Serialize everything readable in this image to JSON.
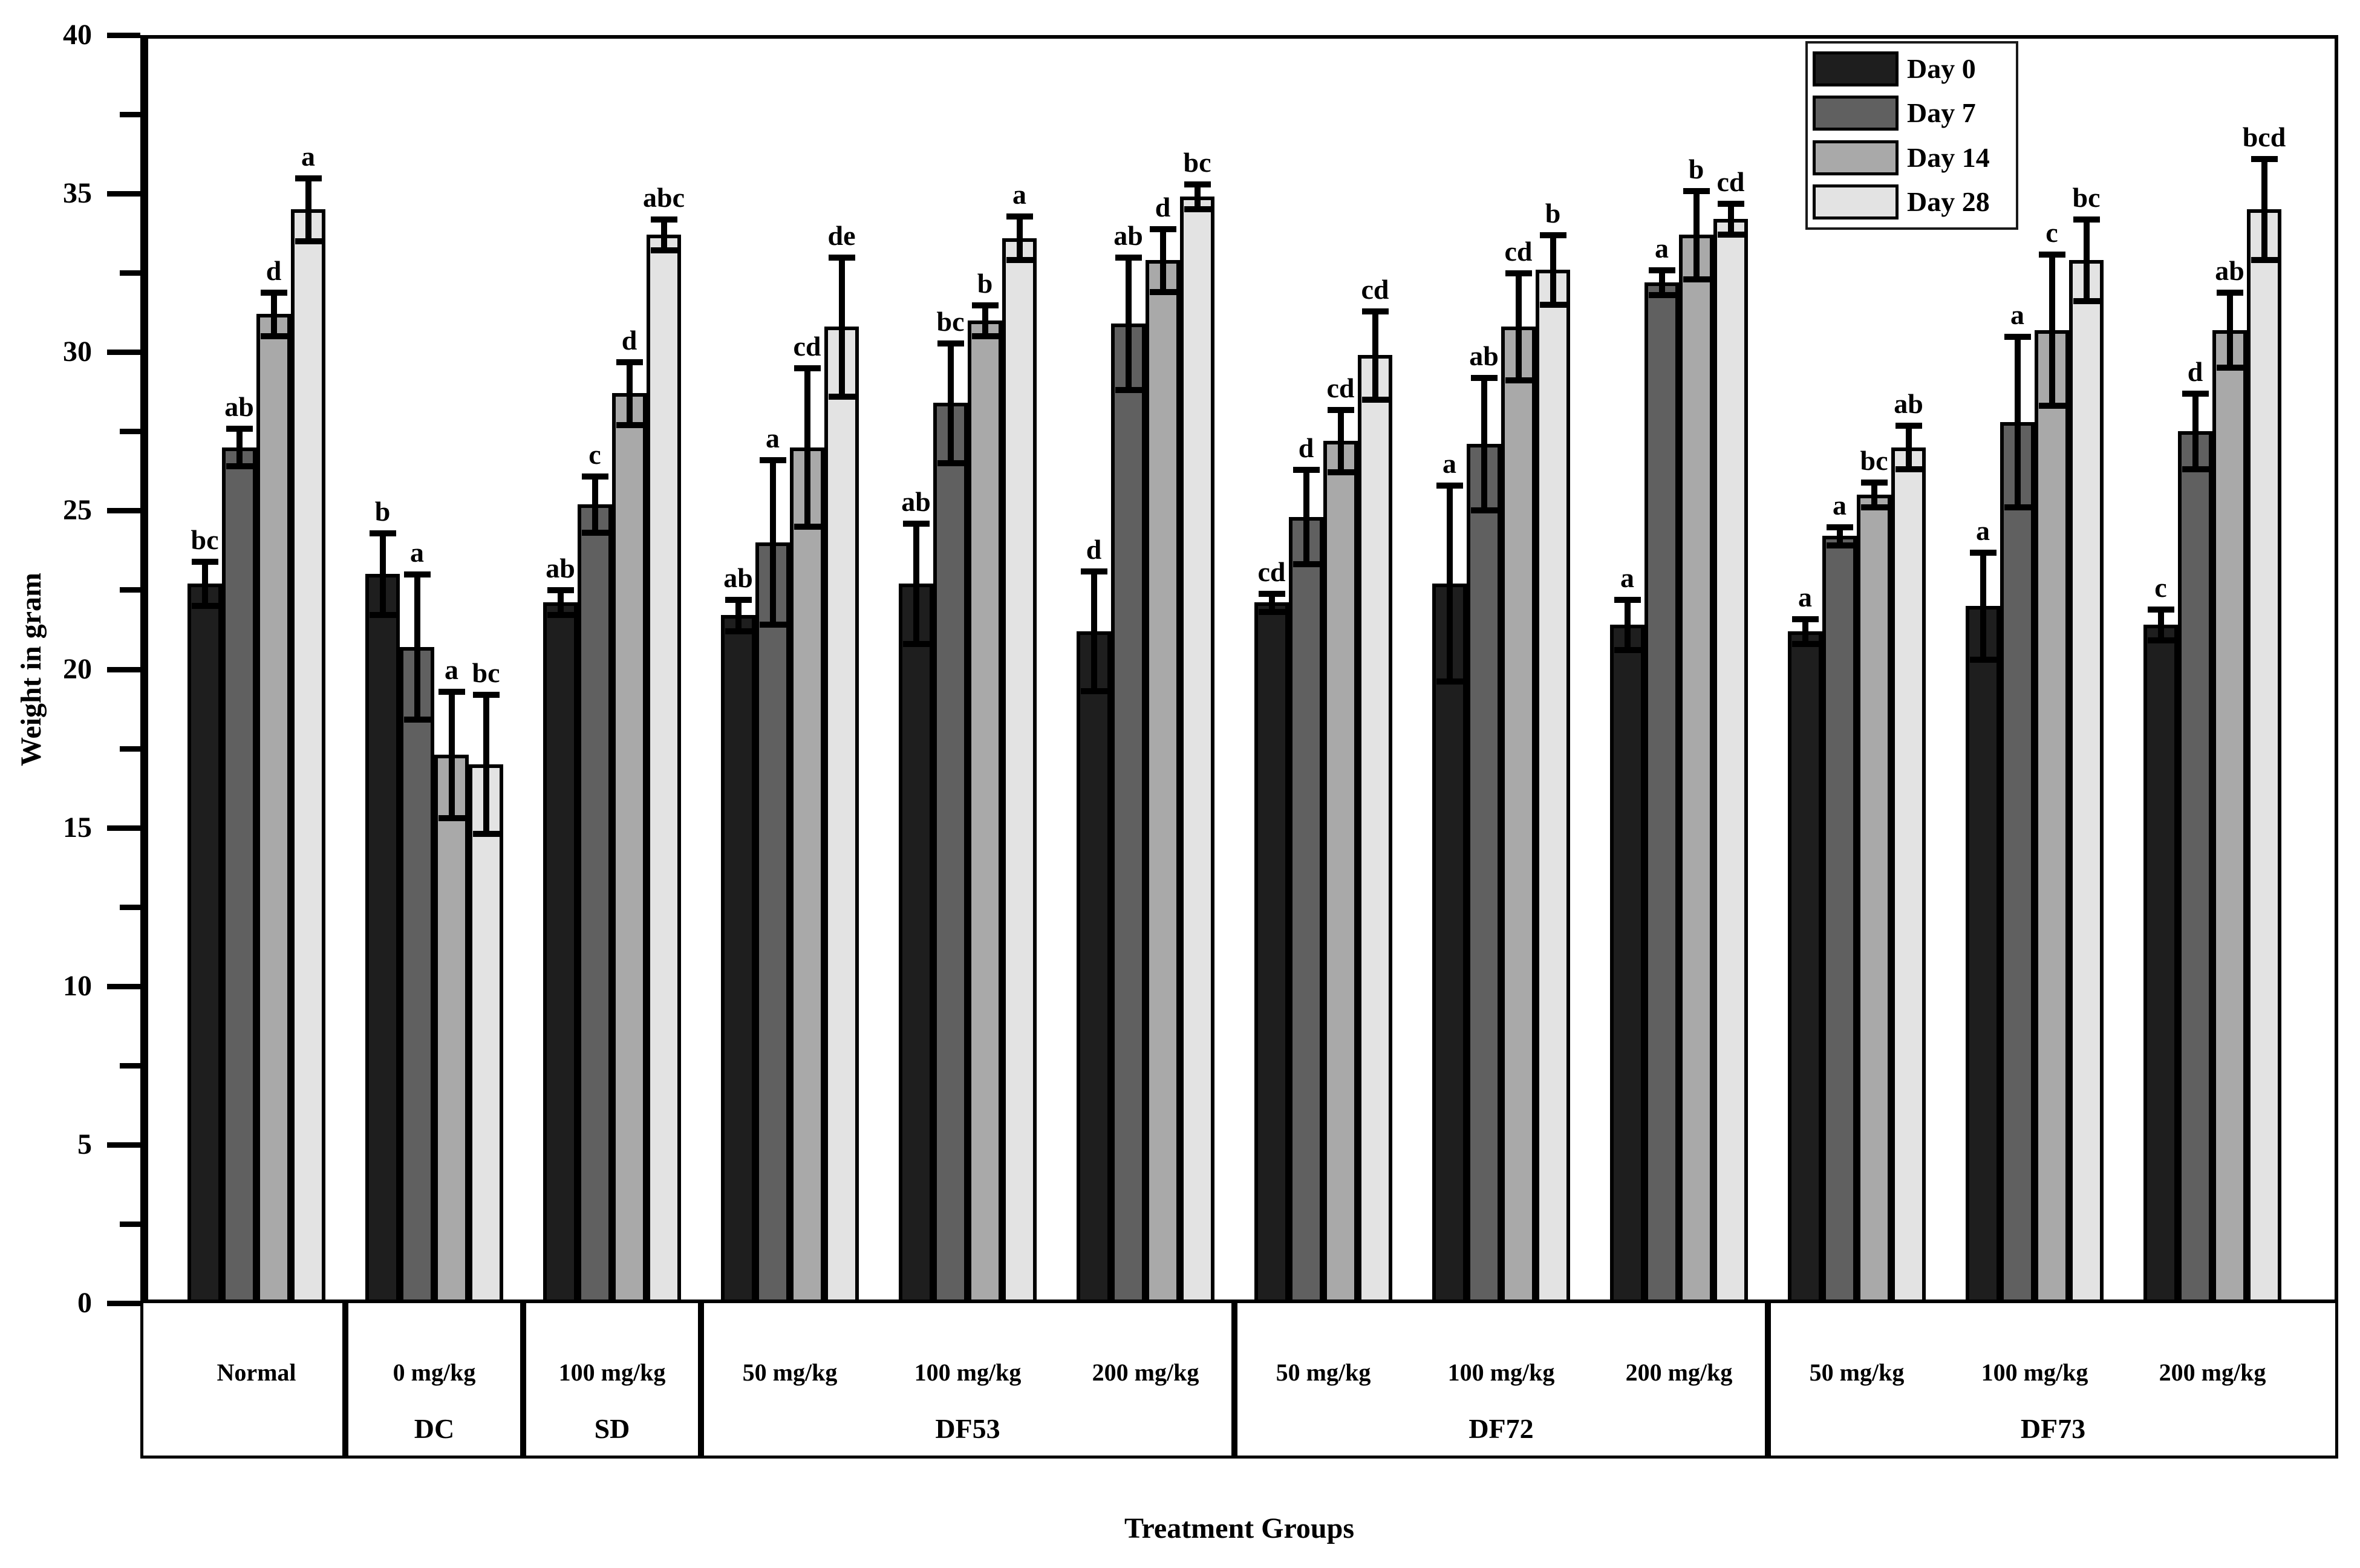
{
  "figure": {
    "xlabel": "Treatment Groups",
    "ylabel": "Weight in gram"
  },
  "chart_data": {
    "type": "bar",
    "title": "",
    "xlabel": "Treatment Groups",
    "ylabel": "Weight in gram",
    "ylim": [
      0,
      40
    ],
    "yticks": [
      0,
      5,
      10,
      15,
      20,
      25,
      30,
      35,
      40
    ],
    "minor_tick_step": 2.5,
    "grid": false,
    "legend_position": "top-right",
    "legend": [
      "Day 0",
      "Day 7",
      "Day 14",
      "Day 28"
    ],
    "series_colors": [
      "#1e1e1e",
      "#606060",
      "#a9a9a9",
      "#e3e3e3"
    ],
    "error_bars": true,
    "sections": [
      {
        "id": "Normal",
        "label": ""
      },
      {
        "id": "DC",
        "label": "DC"
      },
      {
        "id": "SD",
        "label": "SD"
      },
      {
        "id": "DF53",
        "label": "DF53"
      },
      {
        "id": "DF72",
        "label": "DF72"
      },
      {
        "id": "DF73",
        "label": "DF73"
      }
    ],
    "groups": [
      {
        "section": "Normal",
        "dose": "Normal",
        "values": [
          22.7,
          27.0,
          31.2,
          34.5
        ],
        "errors": [
          0.7,
          0.6,
          0.7,
          1.0
        ],
        "letters": [
          "bc",
          "ab",
          "d",
          "a"
        ]
      },
      {
        "section": "DC",
        "dose": "0 mg/kg",
        "values": [
          23.0,
          20.7,
          17.3,
          17.0
        ],
        "errors": [
          1.3,
          2.3,
          2.0,
          2.2
        ],
        "letters": [
          "b",
          "a",
          "a",
          "bc"
        ]
      },
      {
        "section": "SD",
        "dose": "100 mg/kg",
        "values": [
          22.1,
          25.2,
          28.7,
          33.7
        ],
        "errors": [
          0.4,
          0.9,
          1.0,
          0.5
        ],
        "letters": [
          "ab",
          "c",
          "d",
          "abc"
        ]
      },
      {
        "section": "DF53",
        "dose": "50 mg/kg",
        "values": [
          21.7,
          24.0,
          27.0,
          30.8
        ],
        "errors": [
          0.5,
          2.6,
          2.5,
          2.2
        ],
        "letters": [
          "ab",
          "a",
          "cd",
          "de"
        ]
      },
      {
        "section": "DF53",
        "dose": "100 mg/kg",
        "values": [
          22.7,
          28.4,
          31.0,
          33.6
        ],
        "errors": [
          1.9,
          1.9,
          0.5,
          0.7
        ],
        "letters": [
          "ab",
          "bc",
          "b",
          "a"
        ]
      },
      {
        "section": "DF53",
        "dose": "200 mg/kg",
        "values": [
          21.2,
          30.9,
          32.9,
          34.9
        ],
        "errors": [
          1.9,
          2.1,
          1.0,
          0.4
        ],
        "letters": [
          "d",
          "ab",
          "d",
          "bc"
        ]
      },
      {
        "section": "DF72",
        "dose": "50 mg/kg",
        "values": [
          22.1,
          24.8,
          27.2,
          29.9
        ],
        "errors": [
          0.3,
          1.5,
          1.0,
          1.4
        ],
        "letters": [
          "cd",
          "d",
          "cd",
          "cd"
        ]
      },
      {
        "section": "DF72",
        "dose": "100 mg/kg",
        "values": [
          22.7,
          27.1,
          30.8,
          32.6
        ],
        "errors": [
          3.1,
          2.1,
          1.7,
          1.1
        ],
        "letters": [
          "a",
          "ab",
          "cd",
          "b"
        ]
      },
      {
        "section": "DF72",
        "dose": "200 mg/kg",
        "values": [
          21.4,
          32.2,
          33.7,
          34.2
        ],
        "errors": [
          0.8,
          0.4,
          1.4,
          0.5
        ],
        "letters": [
          "a",
          "a",
          "b",
          "cd"
        ]
      },
      {
        "section": "DF73",
        "dose": "50 mg/kg",
        "values": [
          21.2,
          24.2,
          25.5,
          27.0
        ],
        "errors": [
          0.4,
          0.3,
          0.4,
          0.7
        ],
        "letters": [
          "a",
          "a",
          "bc",
          "ab"
        ]
      },
      {
        "section": "DF73",
        "dose": "100 mg/kg",
        "values": [
          22.0,
          27.8,
          30.7,
          32.9
        ],
        "errors": [
          1.7,
          2.7,
          2.4,
          1.3
        ],
        "letters": [
          "a",
          "a",
          "c",
          "bc"
        ]
      },
      {
        "section": "DF73",
        "dose": "200 mg/kg",
        "values": [
          21.4,
          27.5,
          30.7,
          34.5
        ],
        "errors": [
          0.5,
          1.2,
          1.2,
          1.6
        ],
        "letters": [
          "c",
          "d",
          "ab",
          "bcd"
        ]
      }
    ]
  }
}
